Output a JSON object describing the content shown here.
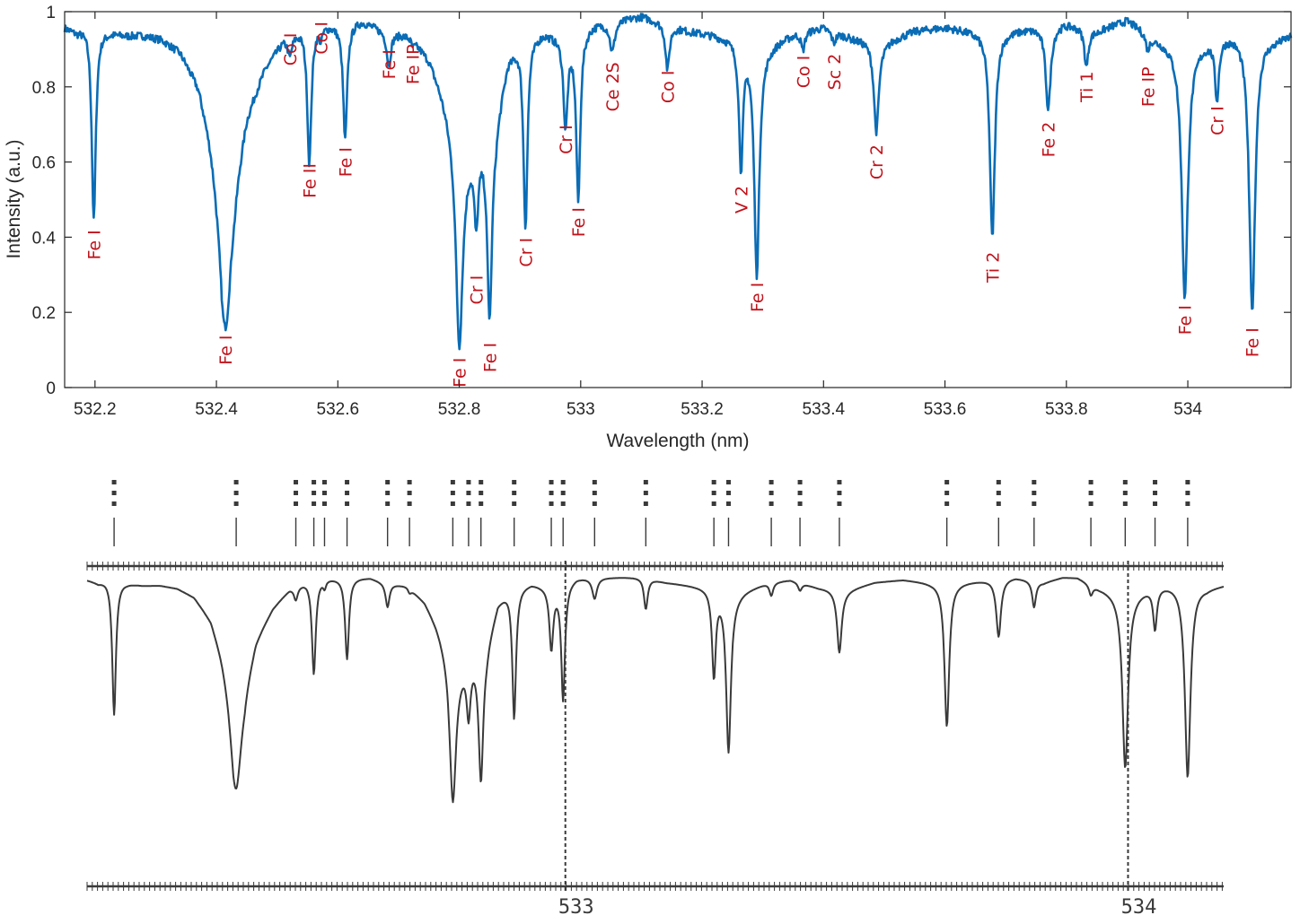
{
  "colors": {
    "spectrum": "#0a6cb5",
    "labels": "#c0141c",
    "axis": "#262626",
    "atlas": "#3a3a3a"
  },
  "chart_data": [
    {
      "type": "line",
      "title": "",
      "xlabel": "Wavelength (nm)",
      "ylabel": "Intensity (a.u.)",
      "xlim": [
        532.15,
        534.17
      ],
      "ylim": [
        0,
        1
      ],
      "grid": false,
      "x_ticks": [
        532.2,
        532.4,
        532.6,
        532.8,
        533,
        533.2,
        533.4,
        533.6,
        533.8,
        534
      ],
      "x_tick_labels": [
        "532.2",
        "532.4",
        "532.6",
        "532.8",
        "533",
        "533.2",
        "533.4",
        "533.6",
        "533.8",
        "534"
      ],
      "y_ticks": [
        0,
        0.2,
        0.4,
        0.6,
        0.8,
        1
      ],
      "y_tick_labels": [
        "0",
        "0.2",
        "0.4",
        "0.6",
        "0.8",
        "1"
      ],
      "continuum": [
        [
          532.15,
          0.96
        ],
        [
          532.17,
          0.95
        ],
        [
          532.19,
          0.97
        ],
        [
          532.22,
          0.95
        ],
        [
          532.25,
          0.94
        ],
        [
          532.28,
          0.94
        ],
        [
          532.31,
          0.93
        ],
        [
          532.34,
          0.9
        ],
        [
          532.37,
          0.82
        ],
        [
          532.39,
          0.7
        ],
        [
          532.41,
          0.55
        ],
        [
          532.43,
          0.6
        ],
        [
          532.45,
          0.75
        ],
        [
          532.48,
          0.86
        ],
        [
          532.51,
          0.93
        ],
        [
          532.54,
          0.96
        ],
        [
          532.57,
          0.97
        ],
        [
          532.6,
          0.97
        ],
        [
          532.64,
          0.98
        ],
        [
          532.68,
          0.95
        ],
        [
          532.72,
          0.94
        ],
        [
          532.75,
          0.88
        ],
        [
          532.77,
          0.8
        ],
        [
          532.79,
          0.7
        ],
        [
          532.8,
          0.62
        ],
        [
          532.86,
          0.72
        ],
        [
          532.88,
          0.88
        ],
        [
          532.9,
          0.93
        ],
        [
          532.94,
          0.95
        ],
        [
          532.98,
          0.93
        ],
        [
          533.02,
          0.97
        ],
        [
          533.06,
          0.98
        ],
        [
          533.1,
          0.99
        ],
        [
          533.14,
          0.97
        ],
        [
          533.18,
          0.95
        ],
        [
          533.22,
          0.94
        ],
        [
          533.26,
          0.93
        ],
        [
          533.3,
          0.9
        ],
        [
          533.32,
          0.92
        ],
        [
          533.36,
          0.95
        ],
        [
          533.4,
          0.96
        ],
        [
          533.45,
          0.93
        ],
        [
          533.5,
          0.92
        ],
        [
          533.55,
          0.95
        ],
        [
          533.6,
          0.96
        ],
        [
          533.65,
          0.95
        ],
        [
          533.7,
          0.95
        ],
        [
          533.75,
          0.96
        ],
        [
          533.8,
          0.97
        ],
        [
          533.85,
          0.95
        ],
        [
          533.9,
          0.98
        ],
        [
          533.95,
          0.93
        ],
        [
          534.0,
          0.9
        ],
        [
          534.05,
          0.94
        ],
        [
          534.1,
          0.95
        ],
        [
          534.14,
          0.93
        ],
        [
          534.17,
          0.94
        ]
      ],
      "absorption_lines": [
        {
          "wl": 532.198,
          "depth": 0.52,
          "width": 0.004,
          "label": "Fe I",
          "label_y": 0.38,
          "label_side": "below"
        },
        {
          "wl": 532.415,
          "depth": 0.4,
          "width": 0.012,
          "label": "Fe I",
          "label_y": 0.1,
          "label_side": "below"
        },
        {
          "wl": 532.521,
          "depth": 0.05,
          "width": 0.004,
          "label": "Co I",
          "label_y": 0.9,
          "label_side": "above"
        },
        {
          "wl": 532.553,
          "depth": 0.36,
          "width": 0.004,
          "label": "Fe II",
          "label_y": 0.55,
          "label_side": "below"
        },
        {
          "wl": 532.572,
          "depth": 0.03,
          "width": 0.003,
          "label": "Co I",
          "label_y": 0.93,
          "label_side": "above"
        },
        {
          "wl": 532.612,
          "depth": 0.31,
          "width": 0.004,
          "label": "Fe I",
          "label_y": 0.6,
          "label_side": "below"
        },
        {
          "wl": 532.684,
          "depth": 0.09,
          "width": 0.004,
          "label": "Fe I",
          "label_y": 0.86,
          "label_side": "above"
        },
        {
          "wl": 532.723,
          "depth": 0.02,
          "width": 0.004,
          "label": "Fe IP",
          "label_y": 0.86,
          "label_side": "above"
        },
        {
          "wl": 532.8,
          "depth": 0.5,
          "width": 0.007,
          "label": "Fe I",
          "label_y": 0.04,
          "label_side": "below"
        },
        {
          "wl": 532.828,
          "depth": 0.2,
          "width": 0.004,
          "label": "Cr I",
          "label_y": 0.26,
          "label_side": "below"
        },
        {
          "wl": 532.85,
          "depth": 0.5,
          "width": 0.005,
          "label": "Fe I",
          "label_y": 0.08,
          "label_side": "below"
        },
        {
          "wl": 532.909,
          "depth": 0.5,
          "width": 0.004,
          "label": "Cr I",
          "label_y": 0.36,
          "label_side": "below"
        },
        {
          "wl": 532.975,
          "depth": 0.23,
          "width": 0.004,
          "label": "Cr I",
          "label_y": 0.66,
          "label_side": "above"
        },
        {
          "wl": 532.996,
          "depth": 0.44,
          "width": 0.004,
          "label": "Fe I",
          "label_y": 0.44,
          "label_side": "below"
        },
        {
          "wl": 533.052,
          "depth": 0.08,
          "width": 0.005,
          "label": "Ce 2S",
          "label_y": 0.8,
          "label_side": "above"
        },
        {
          "wl": 533.143,
          "depth": 0.12,
          "width": 0.004,
          "label": "Co I",
          "label_y": 0.8,
          "label_side": "above"
        },
        {
          "wl": 533.264,
          "depth": 0.33,
          "width": 0.004,
          "label": "V 2",
          "label_y": 0.5,
          "label_side": "above"
        },
        {
          "wl": 533.29,
          "depth": 0.6,
          "width": 0.005,
          "label": "Fe I",
          "label_y": 0.24,
          "label_side": "below"
        },
        {
          "wl": 533.366,
          "depth": 0.05,
          "width": 0.004,
          "label": "Co I",
          "label_y": 0.84,
          "label_side": "above"
        },
        {
          "wl": 533.417,
          "depth": 0.03,
          "width": 0.004,
          "label": "Sc 2",
          "label_y": 0.84,
          "label_side": "above"
        },
        {
          "wl": 533.487,
          "depth": 0.24,
          "width": 0.005,
          "label": "Cr 2",
          "label_y": 0.6,
          "label_side": "below"
        },
        {
          "wl": 533.678,
          "depth": 0.55,
          "width": 0.005,
          "label": "Ti 2",
          "label_y": 0.32,
          "label_side": "below"
        },
        {
          "wl": 533.77,
          "depth": 0.22,
          "width": 0.005,
          "label": "Fe 2",
          "label_y": 0.66,
          "label_side": "below"
        },
        {
          "wl": 533.833,
          "depth": 0.1,
          "width": 0.004,
          "label": "Ti 1",
          "label_y": 0.8,
          "label_side": "above"
        },
        {
          "wl": 533.934,
          "depth": 0.04,
          "width": 0.004,
          "label": "Fe IP",
          "label_y": 0.8,
          "label_side": "above"
        },
        {
          "wl": 533.995,
          "depth": 0.66,
          "width": 0.006,
          "label": "Fe I",
          "label_y": 0.18,
          "label_side": "below"
        },
        {
          "wl": 534.048,
          "depth": 0.16,
          "width": 0.004,
          "label": "Cr I",
          "label_y": 0.71,
          "label_side": "above"
        },
        {
          "wl": 534.106,
          "depth": 0.74,
          "width": 0.006,
          "label": "Fe I",
          "label_y": 0.12,
          "label_side": "below"
        }
      ]
    },
    {
      "type": "line",
      "title": "",
      "xlabel": "",
      "ylabel": "",
      "x_ticks": [
        533,
        534
      ],
      "x_tick_labels": [
        "533",
        "534"
      ],
      "xlim": [
        532.15,
        534.17
      ],
      "ylim": [
        0,
        1
      ],
      "grid": false
    }
  ]
}
